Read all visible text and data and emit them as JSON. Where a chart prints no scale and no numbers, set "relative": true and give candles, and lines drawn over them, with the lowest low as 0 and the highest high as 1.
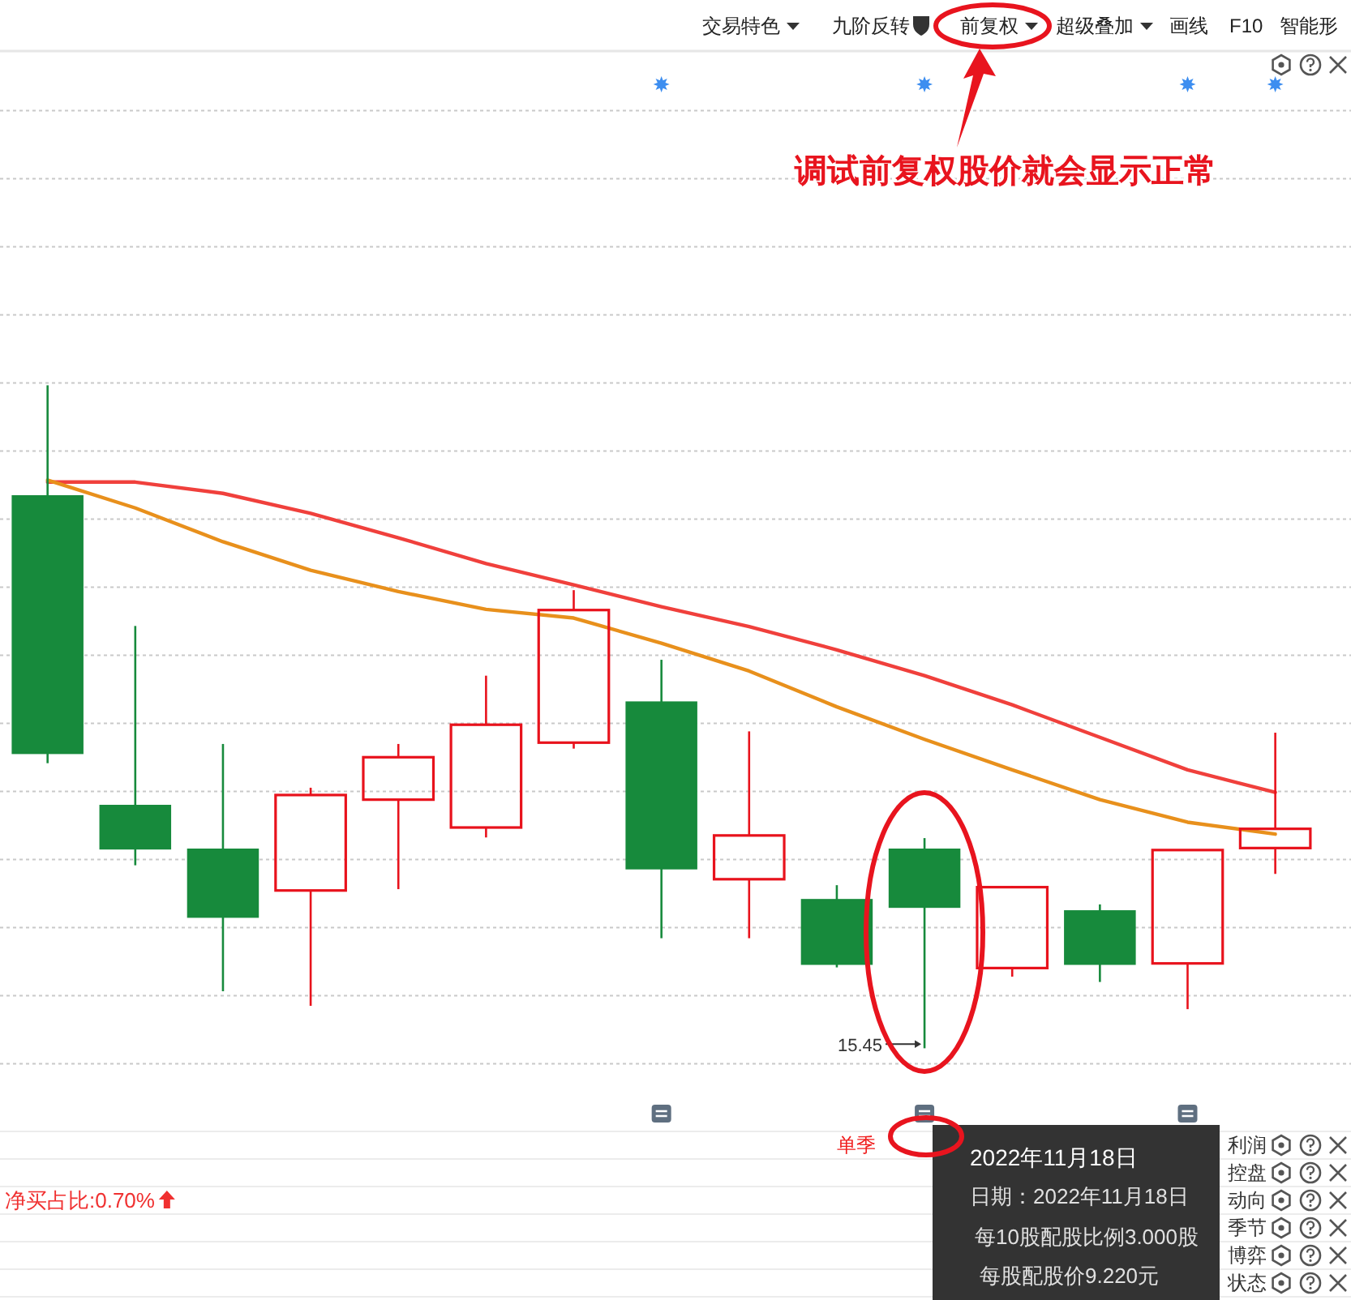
{
  "chart_data": {
    "type": "candlestick",
    "relative": true,
    "categories": [
      null,
      null,
      null,
      null,
      null,
      null,
      null,
      null,
      null,
      null,
      null,
      null,
      null,
      null,
      null
    ],
    "ohlc": [
      [
        0.833,
        1,
        0.43,
        0.445
      ],
      [
        0.366,
        0.637,
        0.276,
        0.301
      ],
      [
        0.3,
        0.459,
        0.086,
        0.198
      ],
      [
        0.238,
        0.393,
        0.064,
        0.382
      ],
      [
        0.375,
        0.459,
        0.24,
        0.439
      ],
      [
        0.333,
        0.562,
        0.318,
        0.488
      ],
      [
        0.461,
        0.691,
        0.452,
        0.661
      ],
      [
        0.522,
        0.586,
        0.166,
        0.271
      ],
      [
        0.255,
        0.478,
        0.166,
        0.321
      ],
      [
        0.224,
        0.246,
        0.122,
        0.127
      ],
      [
        0.3,
        0.317,
        0,
        0.213
      ],
      [
        0.121,
        0.245,
        0.108,
        0.243
      ],
      [
        0.207,
        0.217,
        0.1,
        0.127
      ],
      [
        0.128,
        0.299,
        0.059,
        0.299
      ],
      [
        0.302,
        0.476,
        0.263,
        0.331
      ]
    ],
    "colors": [
      "#178a3c",
      "#178a3c",
      "#178a3c",
      "#e8121c",
      "#e8121c",
      "#e8121c",
      "#e8121c",
      "#178a3c",
      "#e8121c",
      "#178a3c",
      "#178a3c",
      "#e8121c",
      "#178a3c",
      "#e8121c",
      "#e8121c"
    ],
    "series": [
      {
        "type": "line",
        "color": "#f0403c",
        "values": [
          0.854,
          0.854,
          0.837,
          0.807,
          0.77,
          0.731,
          0.699,
          0.666,
          0.636,
          0.601,
          0.562,
          0.518,
          0.469,
          0.42,
          0.386
        ]
      },
      {
        "type": "line",
        "color": "#e8901c",
        "values": [
          0.857,
          0.815,
          0.764,
          0.721,
          0.689,
          0.662,
          0.649,
          0.611,
          0.569,
          0.515,
          0.466,
          0.42,
          0.375,
          0.341,
          0.323
        ]
      }
    ],
    "grid": "y",
    "annotations": [
      "交易特色",
      "九阶反转",
      "前复权",
      "超级叠加",
      "画线",
      "F10",
      "智能形",
      "调试前复权股价就会显示正常",
      "15.45",
      "2022年11月18日",
      "日期：2022年11月18日",
      "每10股配股比例3.000股",
      "每股配股价9.220元",
      "单季",
      "净买占比:0.70%",
      "利润",
      "控盘",
      "动向",
      "季节",
      "博弈",
      "状态"
    ]
  }
}
